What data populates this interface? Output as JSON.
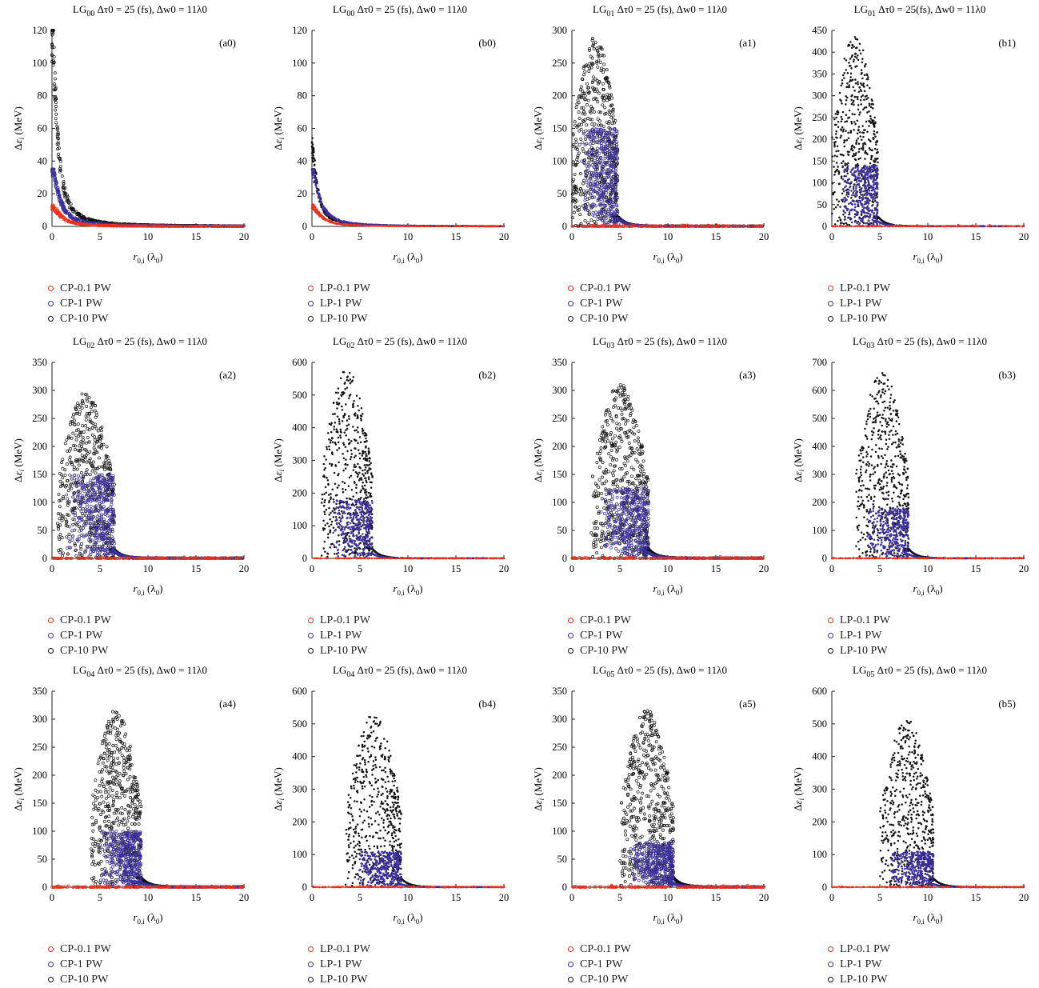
{
  "colors": {
    "series_0_1": "#e8321e",
    "series_1": "#3a2f9b",
    "series_10": "#111111",
    "axis": "#231f20"
  },
  "chart_data": [
    {
      "id": "a0",
      "type": "scatter",
      "title": "LG00 Δτ0 = 25 (fs), Δw0 = 11λ0",
      "title_parts": {
        "mode": "LG",
        "sub": "00",
        "rest": "  Δτ0 = 25 (fs), Δw0 = 11λ0"
      },
      "panel_label": "(a0)",
      "xlabel": "r0,i (λ0)",
      "ylabel": "Δεi (MeV)",
      "xlim": [
        0,
        20
      ],
      "ylim": [
        0,
        120
      ],
      "xticks": [
        0,
        5,
        10,
        15,
        20
      ],
      "yticks": [
        0,
        20,
        40,
        60,
        80,
        100,
        120
      ],
      "pol": "CP",
      "pattern": "decay",
      "peak": {
        "p01": 12,
        "p1": 35,
        "p10": 118
      },
      "r_edge": 0,
      "legend": [
        "CP-0.1 PW",
        "CP-1 PW",
        "CP-10 PW"
      ],
      "series": [
        {
          "name": "CP-0.1 PW",
          "color": "#e8321e"
        },
        {
          "name": "CP-1 PW",
          "color": "#3a2f9b"
        },
        {
          "name": "CP-10 PW",
          "color": "#111111"
        }
      ]
    },
    {
      "id": "b0",
      "type": "scatter",
      "title": "LG00 Δτ0 = 25 (fs), Δw0 = 11λ0",
      "title_parts": {
        "mode": "LG",
        "sub": "00",
        "rest": "  Δτ0 = 25 (fs), Δw0 = 11λ0"
      },
      "panel_label": "(b0)",
      "xlabel": "r0,i (λ0)",
      "ylabel": "Δεi (MeV)",
      "xlim": [
        0,
        20
      ],
      "ylim": [
        0,
        120
      ],
      "xticks": [
        0,
        5,
        10,
        15,
        20
      ],
      "yticks": [
        0,
        20,
        40,
        60,
        80,
        100,
        120
      ],
      "pol": "LP",
      "pattern": "decay",
      "peak": {
        "p01": 12,
        "p1": 35,
        "p10": 49
      },
      "r_edge": 0,
      "legend": [
        "LP-0.1 PW",
        "LP-1 PW",
        "LP-10 PW"
      ],
      "series": [
        {
          "name": "LP-0.1 PW",
          "color": "#e8321e"
        },
        {
          "name": "LP-1 PW",
          "color": "#3a2f9b"
        },
        {
          "name": "LP-10 PW",
          "color": "#111111"
        }
      ]
    },
    {
      "id": "a1",
      "type": "scatter",
      "title": "LG01 Δτ0 = 25 (fs), Δw0 = 11λ0",
      "title_parts": {
        "mode": "LG",
        "sub": "01",
        "rest": "  Δτ0 = 25 (fs), Δw0 = 11λ0"
      },
      "panel_label": "(a1)",
      "xlabel": "r0,i (λ0)",
      "ylabel": "Δεi (MeV)",
      "xlim": [
        0,
        20
      ],
      "ylim": [
        0,
        300
      ],
      "xticks": [
        0,
        5,
        10,
        15,
        20
      ],
      "yticks": [
        0,
        50,
        100,
        150,
        200,
        250,
        300
      ],
      "pol": "CP",
      "pattern": "cloud",
      "peak": {
        "p01": 8,
        "p1": 150,
        "p10": 290
      },
      "r_edge": 4.8,
      "r_start": 0,
      "legend": [
        "CP-0.1 PW",
        "CP-1 PW",
        "CP-10 PW"
      ],
      "series": [
        {
          "name": "CP-0.1 PW",
          "color": "#e8321e"
        },
        {
          "name": "CP-1 PW",
          "color": "#3a2f9b"
        },
        {
          "name": "CP-10 PW",
          "color": "#111111"
        }
      ]
    },
    {
      "id": "b1",
      "type": "scatter",
      "title": "LG01 Δτ0 = 25(fs), Δw0 = 11λ0",
      "title_parts": {
        "mode": "LG",
        "sub": "01",
        "rest": "  Δτ0 = 25(fs), Δw0 = 11λ0"
      },
      "panel_label": "(b1)",
      "xlabel": "r0,i (λ0)",
      "ylabel": "Δεi (MeV)",
      "xlim": [
        0,
        20
      ],
      "ylim": [
        0,
        450
      ],
      "xticks": [
        0,
        5,
        10,
        15,
        20
      ],
      "yticks": [
        0,
        50,
        100,
        150,
        200,
        250,
        300,
        350,
        400,
        450
      ],
      "pol": "LP",
      "pattern": "cloud",
      "peak": {
        "p01": 8,
        "p1": 140,
        "p10": 440
      },
      "r_edge": 4.8,
      "r_start": 0,
      "legend": [
        "LP-0.1 PW",
        "LP-1 PW",
        "LP-10 PW"
      ],
      "series": [
        {
          "name": "LP-0.1 PW",
          "color": "#e8321e"
        },
        {
          "name": "LP-1 PW",
          "color": "#3a2f9b"
        },
        {
          "name": "LP-10 PW",
          "color": "#111111"
        }
      ]
    },
    {
      "id": "a2",
      "type": "scatter",
      "title": "LG02 Δτ0 = 25 (fs), Δw0 = 11λ0",
      "title_parts": {
        "mode": "LG",
        "sub": "02",
        "rest": "  Δτ0 = 25 (fs), Δw0 = 11λ0"
      },
      "panel_label": "(a2)",
      "xlabel": "r0,i (λ0)",
      "ylabel": "Δεi (MeV)",
      "xlim": [
        0,
        20
      ],
      "ylim": [
        0,
        350
      ],
      "xticks": [
        0,
        5,
        10,
        15,
        20
      ],
      "yticks": [
        0,
        50,
        100,
        150,
        200,
        250,
        300,
        350
      ],
      "pol": "CP",
      "pattern": "cloud",
      "peak": {
        "p01": 6,
        "p1": 150,
        "p10": 300
      },
      "r_edge": 6.5,
      "r_start": 0.5,
      "legend": [
        "CP-0.1 PW",
        "CP-1 PW",
        "CP-10 PW"
      ],
      "series": [
        {
          "name": "CP-0.1 PW",
          "color": "#e8321e"
        },
        {
          "name": "CP-1 PW",
          "color": "#3a2f9b"
        },
        {
          "name": "CP-10 PW",
          "color": "#111111"
        }
      ]
    },
    {
      "id": "b2",
      "type": "scatter",
      "title": "LG02 Δτ0 = 25 (fs), Δw0 = 11λ0",
      "title_parts": {
        "mode": "LG",
        "sub": "02",
        "rest": "  Δτ0 = 25 (fs), Δw0 = 11λ0"
      },
      "panel_label": "(b2)",
      "xlabel": "r0,i (λ0)",
      "ylabel": "Δεi (MeV)",
      "xlim": [
        0,
        20
      ],
      "ylim": [
        0,
        600
      ],
      "xticks": [
        0,
        5,
        10,
        15,
        20
      ],
      "yticks": [
        0,
        100,
        200,
        300,
        400,
        500,
        600
      ],
      "pol": "LP",
      "pattern": "cloud",
      "peak": {
        "p01": 8,
        "p1": 180,
        "p10": 580
      },
      "r_edge": 6.3,
      "r_start": 1,
      "legend": [
        "LP-0.1 PW",
        "LP-1 PW",
        "LP-10 PW"
      ],
      "series": [
        {
          "name": "LP-0.1 PW",
          "color": "#e8321e"
        },
        {
          "name": "LP-1 PW",
          "color": "#3a2f9b"
        },
        {
          "name": "LP-10 PW",
          "color": "#111111"
        }
      ]
    },
    {
      "id": "a3",
      "type": "scatter",
      "title": "LG03 Δτ0 = 25 (fs), Δw0 = 11λ0",
      "title_parts": {
        "mode": "LG",
        "sub": "03",
        "rest": "  Δτ0 = 25 (fs), Δw0 = 11λ0"
      },
      "panel_label": "(a3)",
      "xlabel": "r0,i (λ0)",
      "ylabel": "Δεi (MeV)",
      "xlim": [
        0,
        20
      ],
      "ylim": [
        0,
        350
      ],
      "xticks": [
        0,
        5,
        10,
        15,
        20
      ],
      "yticks": [
        0,
        50,
        100,
        150,
        200,
        250,
        300,
        350
      ],
      "pol": "CP",
      "pattern": "cloud",
      "peak": {
        "p01": 8,
        "p1": 125,
        "p10": 315
      },
      "r_edge": 8,
      "r_start": 2,
      "legend": [
        "CP-0.1 PW",
        "CP-1 PW",
        "CP-10 PW"
      ],
      "series": [
        {
          "name": "CP-0.1 PW",
          "color": "#e8321e"
        },
        {
          "name": "CP-1 PW",
          "color": "#3a2f9b"
        },
        {
          "name": "CP-10 PW",
          "color": "#111111"
        }
      ]
    },
    {
      "id": "b3",
      "type": "scatter",
      "title": "LG03 Δτ0 = 25 (fs), Δw0 = 11λ0",
      "title_parts": {
        "mode": "LG",
        "sub": "03",
        "rest": "  Δτ0 = 25 (fs), Δw0 = 11λ0"
      },
      "panel_label": "(b3)",
      "xlabel": "r0,i (λ0)",
      "ylabel": "Δεi (MeV)",
      "xlim": [
        0,
        20
      ],
      "ylim": [
        0,
        700
      ],
      "xticks": [
        0,
        5,
        10,
        15,
        20
      ],
      "yticks": [
        0,
        100,
        200,
        300,
        400,
        500,
        600,
        700
      ],
      "pol": "LP",
      "pattern": "cloud",
      "peak": {
        "p01": 8,
        "p1": 180,
        "p10": 670
      },
      "r_edge": 8,
      "r_start": 2.5,
      "legend": [
        "LP-0.1 PW",
        "LP-1 PW",
        "LP-10 PW"
      ],
      "series": [
        {
          "name": "LP-0.1 PW",
          "color": "#e8321e"
        },
        {
          "name": "LP-1 PW",
          "color": "#3a2f9b"
        },
        {
          "name": "LP-10 PW",
          "color": "#111111"
        }
      ]
    },
    {
      "id": "a4",
      "type": "scatter",
      "title": "LG04 Δτ0 = 25 (fs), Δw0 = 11λ0",
      "title_parts": {
        "mode": "LG",
        "sub": "04",
        "rest": "  Δτ0 = 25 (fs), Δw0 = 11λ0"
      },
      "panel_label": "(a4)",
      "xlabel": "r0,i (λ0)",
      "ylabel": "Δεi (MeV)",
      "xlim": [
        0,
        20
      ],
      "ylim": [
        0,
        350
      ],
      "xticks": [
        0,
        5,
        10,
        15,
        20
      ],
      "yticks": [
        0,
        50,
        100,
        150,
        200,
        250,
        300,
        350
      ],
      "pol": "CP",
      "pattern": "cloud",
      "peak": {
        "p01": 8,
        "p1": 100,
        "p10": 320
      },
      "r_edge": 9.3,
      "r_start": 4,
      "legend": [
        "CP-0.1 PW",
        "CP-1 PW",
        "CP-10 PW"
      ],
      "series": [
        {
          "name": "CP-0.1 PW",
          "color": "#e8321e"
        },
        {
          "name": "CP-1 PW",
          "color": "#3a2f9b"
        },
        {
          "name": "CP-10 PW",
          "color": "#111111"
        }
      ]
    },
    {
      "id": "b4",
      "type": "scatter",
      "title": "LG04 Δτ0 = 25 (fs), Δw0 = 11λ0",
      "title_parts": {
        "mode": "LG",
        "sub": "04",
        "rest": "  Δτ0 = 25 (fs), Δw0 = 11λ0"
      },
      "panel_label": "(b4)",
      "xlabel": "r0,i (λ0)",
      "ylabel": "Δεi (MeV)",
      "xlim": [
        0,
        20
      ],
      "ylim": [
        0,
        600
      ],
      "xticks": [
        0,
        5,
        10,
        15,
        20
      ],
      "yticks": [
        0,
        100,
        200,
        300,
        400,
        500,
        600
      ],
      "pol": "LP",
      "pattern": "cloud",
      "peak": {
        "p01": 8,
        "p1": 110,
        "p10": 530
      },
      "r_edge": 9.3,
      "r_start": 3.5,
      "legend": [
        "LP-0.1 PW",
        "LP-1 PW",
        "LP-10 PW"
      ],
      "series": [
        {
          "name": "LP-0.1 PW",
          "color": "#e8321e"
        },
        {
          "name": "LP-1 PW",
          "color": "#3a2f9b"
        },
        {
          "name": "LP-10 PW",
          "color": "#111111"
        }
      ]
    },
    {
      "id": "a5",
      "type": "scatter",
      "title": "LG05 Δτ0 = 25 (fs), Δw0 = 11λ0",
      "title_parts": {
        "mode": "LG",
        "sub": "05",
        "rest": "  Δτ0 = 25 (fs), Δw0 = 11λ0"
      },
      "panel_label": "(a5)",
      "xlabel": "r0,i (λ0)",
      "ylabel": "Δεi (MeV)",
      "xlim": [
        0,
        20
      ],
      "ylim": [
        0,
        350
      ],
      "xticks": [
        0,
        5,
        10,
        15,
        20
      ],
      "yticks": [
        0,
        50,
        100,
        150,
        200,
        250,
        300,
        350
      ],
      "pol": "CP",
      "pattern": "cloud",
      "peak": {
        "p01": 8,
        "p1": 80,
        "p10": 320
      },
      "r_edge": 10.6,
      "r_start": 5,
      "legend": [
        "CP-0.1 PW",
        "CP-1 PW",
        "CP-10 PW"
      ],
      "series": [
        {
          "name": "CP-0.1 PW",
          "color": "#e8321e"
        },
        {
          "name": "CP-1 PW",
          "color": "#3a2f9b"
        },
        {
          "name": "CP-10 PW",
          "color": "#111111"
        }
      ]
    },
    {
      "id": "b5",
      "type": "scatter",
      "title": "LG05 Δτ0 = 25 (fs), Δw0 = 11λ0",
      "title_parts": {
        "mode": "LG",
        "sub": "05",
        "rest": "  Δτ0 = 25 (fs), Δw0 = 11λ0"
      },
      "panel_label": "(b5)",
      "xlabel": "r0,i (λ0)",
      "ylabel": "Δεi (MeV)",
      "xlim": [
        0,
        20
      ],
      "ylim": [
        0,
        600
      ],
      "xticks": [
        0,
        5,
        10,
        15,
        20
      ],
      "yticks": [
        0,
        100,
        200,
        300,
        400,
        500,
        600
      ],
      "pol": "LP",
      "pattern": "cloud",
      "peak": {
        "p01": 8,
        "p1": 110,
        "p10": 515
      },
      "r_edge": 10.6,
      "r_start": 5,
      "legend": [
        "LP-0.1 PW",
        "LP-1 PW",
        "LP-10 PW"
      ],
      "series": [
        {
          "name": "LP-0.1 PW",
          "color": "#e8321e"
        },
        {
          "name": "LP-1 PW",
          "color": "#3a2f9b"
        },
        {
          "name": "LP-10 PW",
          "color": "#111111"
        }
      ]
    }
  ]
}
